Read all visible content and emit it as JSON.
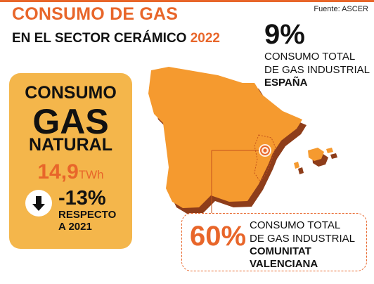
{
  "header": {
    "title": "CONSUMO DE GAS",
    "subtitle_prefix": "EN EL SECTOR CERÁMICO",
    "subtitle_year": "2022",
    "source": "Fuente: ASCER"
  },
  "card": {
    "line1": "CONSUMO",
    "line2": "GAS",
    "line3": "NATURAL",
    "value": "14,9",
    "unit": "TWh",
    "change": "-13%",
    "change_label_1": "RESPECTO",
    "change_label_2": "A 2021",
    "arrow_icon": "arrow-down-icon"
  },
  "national": {
    "percent": "9%",
    "line1": "CONSUMO TOTAL",
    "line2": "DE GAS INDUSTRIAL",
    "line3": "ESPAÑA"
  },
  "regional": {
    "percent": "60%",
    "line1": "CONSUMO TOTAL",
    "line2": "DE GAS INDUSTRIAL",
    "line3": "COMUNITAT",
    "line4": "VALENCIANA"
  },
  "colors": {
    "accent": "#e8662a",
    "card": "#f4b64b",
    "map_fill": "#f59a2f",
    "map_shadow": "#8e3d1a",
    "region_border": "#c5531c"
  }
}
